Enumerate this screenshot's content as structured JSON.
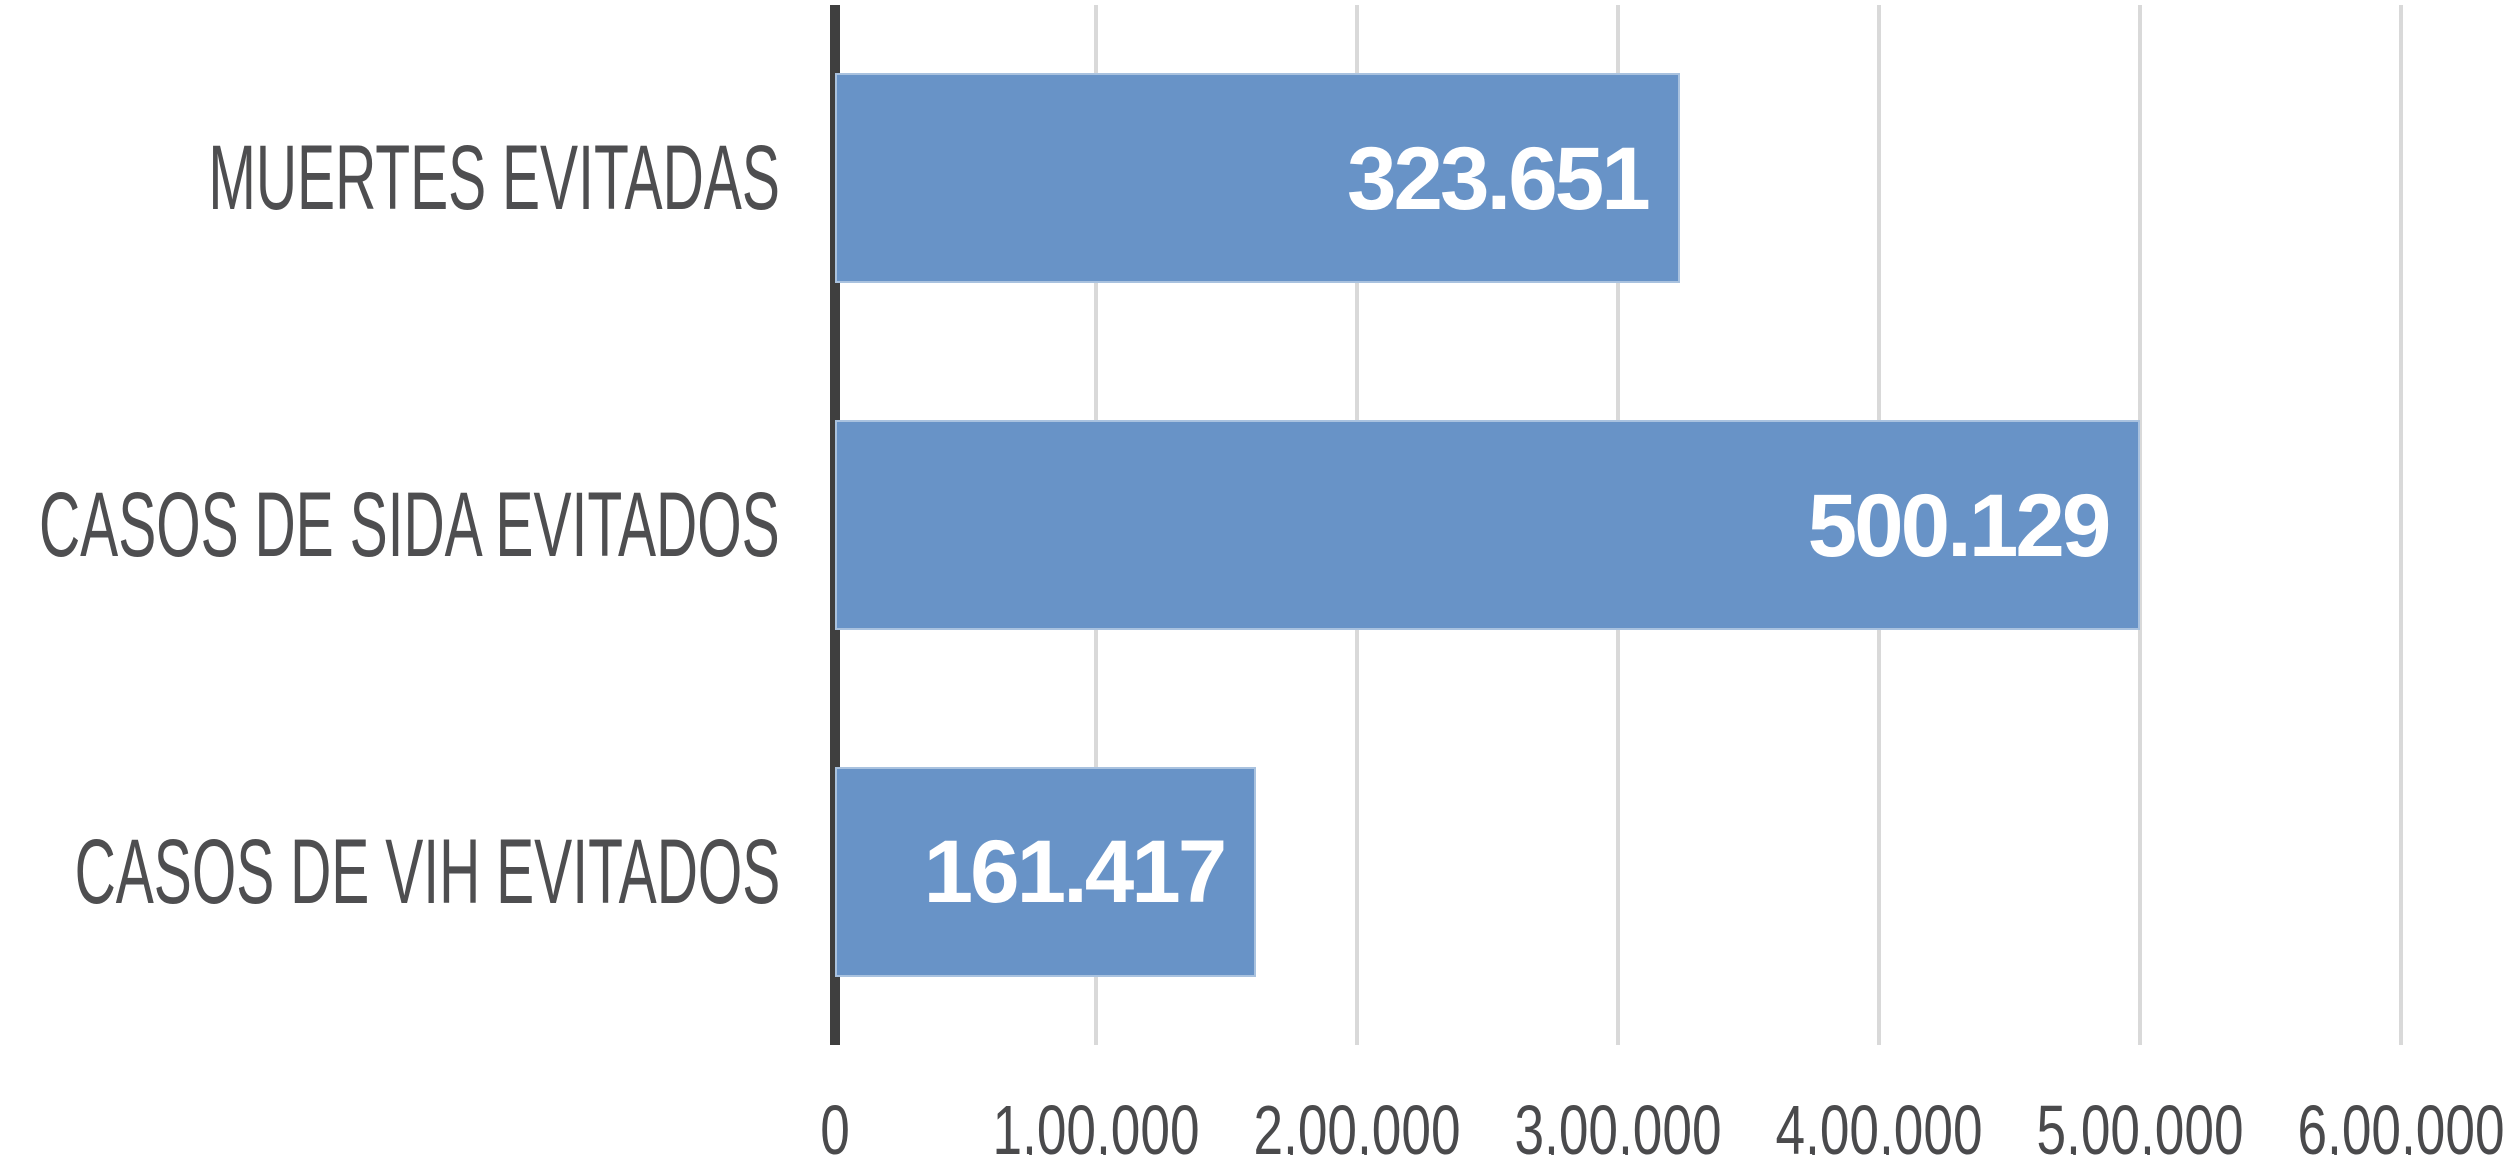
{
  "chart_data": {
    "type": "bar",
    "orientation": "horizontal",
    "title": "",
    "xlabel": "",
    "ylabel": "",
    "categories": [
      "MUERTES EVITADAS",
      "CASOS DE SIDA EVITADOS",
      "CASOS DE VIH EVITADOS"
    ],
    "values": [
      323651,
      500129,
      161417
    ],
    "value_labels": [
      "323.651",
      "500.129",
      "161.417"
    ],
    "xlim": [
      0,
      600000
    ],
    "x_ticks": [
      0,
      100000,
      200000,
      300000,
      400000,
      500000,
      600000
    ],
    "x_tick_labels": [
      "0",
      "1,00,000",
      "2,00,000",
      "3,00,000",
      "4,00,000",
      "5,00,000",
      "6,00,000"
    ],
    "grid": true,
    "legend": false,
    "colors": {
      "bar_fill": "#6893C7",
      "bar_border": "#A9C2DF",
      "value_label_text": "#FFFFFF",
      "category_label_text": "#4E4E50",
      "tick_label_text": "#4A4A4C",
      "gridline": "#D9D9D9",
      "axis_line": "#3F3F3F",
      "background": "#FFFFFF"
    }
  }
}
